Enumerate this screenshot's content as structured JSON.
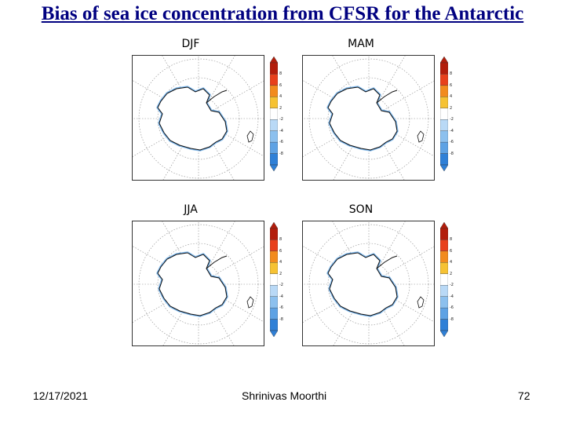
{
  "slide": {
    "title": "Bias of sea ice concentration from CFSR for the Antarctic",
    "date": "12/17/2021",
    "author": "Shrinivas Moorthi",
    "page_number": "72"
  },
  "panels": [
    {
      "label": "DJF",
      "colorbar_labels": [
        "8",
        "6",
        "4",
        "2",
        "-2",
        "-4",
        "-6",
        "-8"
      ]
    },
    {
      "label": "MAM",
      "colorbar_labels": [
        "8",
        "6",
        "4",
        "2",
        "-2",
        "-4",
        "-6",
        "-8"
      ]
    },
    {
      "label": "JJA",
      "colorbar_labels": [
        "8",
        "6",
        "4",
        "2",
        "-2",
        "-4",
        "-6",
        "-8"
      ]
    },
    {
      "label": "SON",
      "colorbar_labels": [
        "8",
        "6",
        "4",
        "2",
        "-2",
        "-4",
        "-6",
        "-8"
      ]
    }
  ],
  "colorbar_colors": [
    "#b31d0b",
    "#e8401c",
    "#f28b1e",
    "#f6c233",
    "#ffffff",
    "#b9d9f6",
    "#8cc0ee",
    "#5ea2e4",
    "#2f80d7"
  ]
}
